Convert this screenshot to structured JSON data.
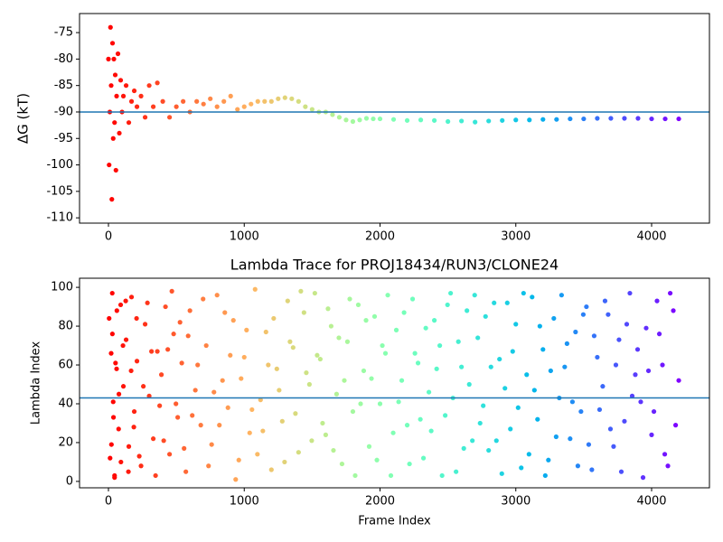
{
  "chart_data": [
    {
      "type": "scatter",
      "ylabel": "ΔG (kT)",
      "colormap": "rainbow_r",
      "reference_line": -90,
      "reference_color": "#1f77b4",
      "xlim": [
        -213,
        4426
      ],
      "ylim": [
        -111,
        -71.4
      ],
      "xticks": [
        0,
        1000,
        2000,
        3000,
        4000
      ],
      "yticks": [
        -110,
        -105,
        -100,
        -95,
        -90,
        -85,
        -80,
        -75
      ],
      "x": [
        0,
        5,
        10,
        15,
        20,
        25,
        30,
        35,
        40,
        45,
        50,
        55,
        60,
        70,
        80,
        90,
        100,
        110,
        130,
        150,
        170,
        190,
        210,
        240,
        270,
        300,
        330,
        360,
        400,
        450,
        500,
        550,
        600,
        650,
        700,
        750,
        800,
        850,
        900,
        950,
        1000,
        1050,
        1100,
        1150,
        1200,
        1250,
        1300,
        1350,
        1400,
        1450,
        1500,
        1550,
        1600,
        1650,
        1700,
        1750,
        1800,
        1850,
        1900,
        1950,
        2000,
        2100,
        2200,
        2300,
        2400,
        2500,
        2600,
        2700,
        2800,
        2900,
        3000,
        3100,
        3200,
        3300,
        3400,
        3500,
        3600,
        3700,
        3800,
        3900,
        4000,
        4100,
        4200
      ],
      "y": [
        -80,
        -100,
        -90,
        -74,
        -85,
        -106.5,
        -77,
        -95,
        -80,
        -92,
        -83,
        -101,
        -87,
        -79,
        -94,
        -84,
        -90,
        -87,
        -85,
        -92,
        -88,
        -86,
        -89,
        -87,
        -91,
        -85,
        -89,
        -84.5,
        -88,
        -91,
        -89,
        -88,
        -90,
        -88,
        -88.5,
        -87.5,
        -89,
        -88,
        -87,
        -89.5,
        -89,
        -88.5,
        -88,
        -88,
        -88,
        -87.5,
        -87.3,
        -87.5,
        -88,
        -89,
        -89.5,
        -90,
        -90,
        -90.5,
        -91,
        -91.5,
        -91.8,
        -91.5,
        -91.2,
        -91.3,
        -91.3,
        -91.4,
        -91.6,
        -91.5,
        -91.6,
        -91.8,
        -91.7,
        -91.9,
        -91.7,
        -91.6,
        -91.5,
        -91.5,
        -91.4,
        -91.4,
        -91.3,
        -91.3,
        -91.2,
        -91.2,
        -91.2,
        -91.2,
        -91.3,
        -91.3,
        -91.3
      ]
    },
    {
      "type": "scatter",
      "title": "Lambda Trace for PROJ18434/RUN3/CLONE24",
      "xlabel": "Frame Index",
      "ylabel": "Lambda Index",
      "colormap": "rainbow_r",
      "reference_line": 43,
      "reference_color": "#1f77b4",
      "xlim": [
        -213,
        4426
      ],
      "ylim": [
        -3.3,
        104.7
      ],
      "xticks": [
        0,
        1000,
        2000,
        3000,
        4000
      ],
      "yticks": [
        0,
        20,
        40,
        60,
        80,
        100
      ],
      "x": [
        5,
        12,
        20,
        28,
        35,
        45,
        60,
        75,
        90,
        110,
        130,
        150,
        170,
        190,
        210,
        240,
        270,
        300,
        330,
        360,
        390,
        420,
        450,
        480,
        510,
        540,
        570,
        600,
        640,
        680,
        720,
        760,
        800,
        840,
        880,
        920,
        960,
        1000,
        1040,
        1080,
        1120,
        1160,
        1200,
        1240,
        1280,
        1320,
        1360,
        1400,
        1440,
        1480,
        1520,
        1560,
        1600,
        1640,
        1680,
        1720,
        1760,
        1800,
        1840,
        1880,
        1920,
        1960,
        2000,
        2040,
        2080,
        2120,
        2160,
        2200,
        2240,
        2280,
        2320,
        2360,
        2400,
        2440,
        2480,
        2520,
        2560,
        2600,
        2640,
        2680,
        2720,
        2760,
        2800,
        2840,
        2880,
        2920,
        2960,
        3000,
        3040,
        3080,
        3120,
        3160,
        3200,
        3240,
        3280,
        3320,
        3360,
        3400,
        3440,
        3480,
        3520,
        3560,
        3600,
        3640,
        3680,
        3720,
        3760,
        3800,
        3840,
        3880,
        3920,
        3960,
        4000,
        4040,
        4080,
        4120,
        4160,
        4200,
        22,
        29,
        37,
        45,
        52,
        62,
        77,
        92,
        107,
        127,
        147,
        167,
        187,
        207,
        227,
        257,
        287,
        317,
        347,
        377,
        407,
        437,
        467,
        497,
        527,
        557,
        587,
        617,
        657,
        697,
        737,
        777,
        817,
        857,
        897,
        937,
        977,
        1017,
        1057,
        1097,
        1137,
        1177,
        1217,
        1257,
        1297,
        1337,
        1377,
        1417,
        1457,
        1497,
        1537,
        1577,
        1617,
        1657,
        1697,
        1737,
        1777,
        1817,
        1857,
        1897,
        1937,
        1977,
        2017,
        2057,
        2097,
        2137,
        2177,
        2217,
        2257,
        2297,
        2337,
        2377,
        2417,
        2457,
        2497,
        2537,
        2577,
        2617,
        2657,
        2697,
        2737,
        2777,
        2817,
        2857,
        2897,
        2937,
        2977,
        3017,
        3057,
        3097,
        3137,
        3177,
        3217,
        3257,
        3297,
        3337,
        3377,
        3417,
        3457,
        3497,
        3537,
        3577,
        3617,
        3657,
        3697,
        3737,
        3777,
        3817,
        3857,
        3897,
        3937,
        3977,
        4017,
        4057,
        4097,
        4137,
        4177
      ],
      "y": [
        84,
        12,
        66,
        97,
        41,
        3,
        58,
        27,
        91,
        49,
        73,
        18,
        95,
        36,
        62,
        8,
        81,
        44,
        22,
        67,
        55,
        90,
        14,
        76,
        33,
        61,
        5,
        88,
        47,
        29,
        70,
        19,
        96,
        52,
        38,
        83,
        11,
        64,
        25,
        99,
        42,
        77,
        6,
        58,
        31,
        93,
        69,
        15,
        87,
        50,
        97,
        63,
        24,
        80,
        45,
        9,
        72,
        36,
        91,
        57,
        18,
        85,
        40,
        66,
        3,
        78,
        52,
        29,
        94,
        61,
        12,
        46,
        83,
        70,
        34,
        97,
        5,
        59,
        88,
        21,
        74,
        39,
        16,
        92,
        63,
        48,
        27,
        81,
        7,
        55,
        95,
        32,
        68,
        11,
        84,
        43,
        59,
        22,
        77,
        36,
        90,
        6,
        64,
        49,
        86,
        18,
        73,
        31,
        97,
        55,
        41,
        79,
        24,
        93,
        60,
        8,
        88,
        52,
        19,
        76,
        33,
        2,
        61,
        88,
        45,
        10,
        70,
        93,
        5,
        57,
        28,
        84,
        13,
        49,
        92,
        67,
        3,
        39,
        21,
        68,
        98,
        40,
        82,
        17,
        75,
        34,
        60,
        94,
        8,
        46,
        29,
        87,
        65,
        1,
        53,
        78,
        37,
        14,
        26,
        60,
        84,
        47,
        10,
        72,
        35,
        98,
        56,
        21,
        65,
        30,
        89,
        16,
        74,
        52,
        94,
        3,
        40,
        83,
        53,
        11,
        70,
        96,
        25,
        41,
        87,
        9,
        66,
        32,
        79,
        26,
        58,
        3,
        91,
        43,
        72,
        17,
        50,
        96,
        30,
        85,
        59,
        21,
        4,
        92,
        67,
        38,
        97,
        14,
        47,
        80,
        3,
        57,
        23,
        96,
        71,
        41,
        8,
        86,
        19,
        75,
        37,
        93,
        27,
        60,
        5,
        81,
        44,
        68,
        2,
        57,
        36,
        76,
        14,
        97,
        29
      ]
    }
  ]
}
